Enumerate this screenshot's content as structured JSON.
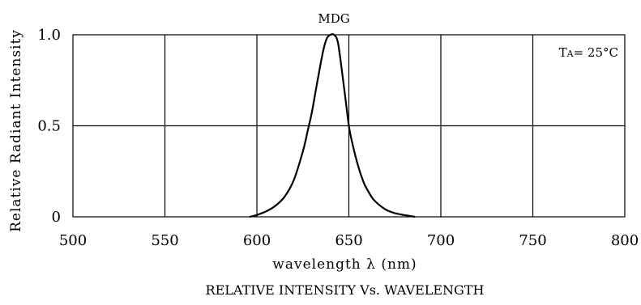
{
  "chart_data": {
    "type": "line",
    "title": "RELATIVE INTENSITY Vs. WAVELENGTH",
    "xlabel": "wavelength λ  (nm)",
    "ylabel": "Relative Radiant Intensity",
    "xlim": [
      500,
      800
    ],
    "ylim": [
      0,
      1.0
    ],
    "x_ticks": [
      500,
      550,
      600,
      650,
      700,
      750,
      800
    ],
    "x_tick_labels": [
      "500",
      "550",
      "600",
      "650",
      "700",
      "750",
      "800"
    ],
    "y_ticks": [
      0,
      0.5,
      1.0
    ],
    "y_tick_labels": [
      "0",
      "0.5",
      "1.0"
    ],
    "grid": true,
    "annotation": {
      "prefix": "T",
      "subscript": "A",
      "suffix": "= 25°C"
    },
    "series": [
      {
        "name": "MDG",
        "x": [
          596,
          600,
          605,
          610,
          615,
          620,
          625,
          628,
          630,
          633,
          636,
          638,
          640,
          642,
          644,
          646,
          648,
          650,
          652,
          655,
          658,
          660,
          663,
          666,
          670,
          675,
          680,
          683,
          686
        ],
        "y": [
          0.0,
          0.01,
          0.03,
          0.06,
          0.11,
          0.2,
          0.36,
          0.49,
          0.58,
          0.75,
          0.91,
          0.98,
          1.0,
          1.0,
          0.96,
          0.82,
          0.66,
          0.5,
          0.4,
          0.28,
          0.19,
          0.15,
          0.1,
          0.07,
          0.04,
          0.02,
          0.01,
          0.005,
          0.0
        ]
      }
    ]
  }
}
